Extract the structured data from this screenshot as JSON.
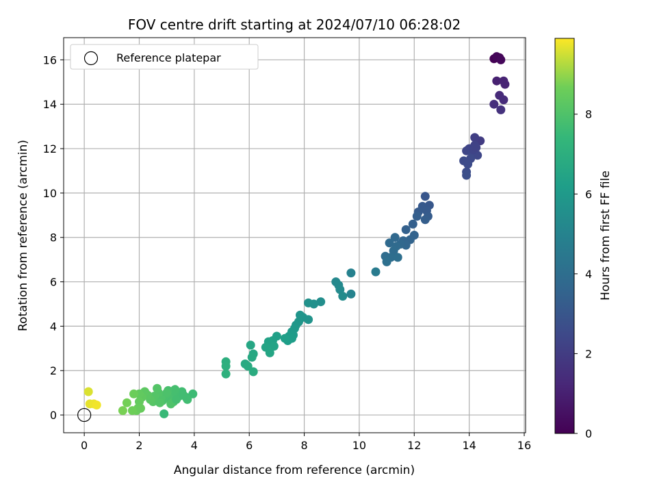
{
  "chart_data": {
    "type": "scatter",
    "title": "FOV centre drift starting at 2024/07/10 06:28:02",
    "xlabel": "Angular distance from reference (arcmin)",
    "ylabel": "Rotation from reference (arcmin)",
    "xlim": [
      -0.75,
      16.05
    ],
    "ylim": [
      -0.8,
      17.0
    ],
    "xticks": [
      "0",
      "2",
      "4",
      "6",
      "8",
      "10",
      "12",
      "14",
      "16"
    ],
    "yticks": [
      "0",
      "2",
      "4",
      "6",
      "8",
      "10",
      "12",
      "14",
      "16"
    ],
    "grid": true,
    "legend": {
      "position": "top-left",
      "entries": [
        "Reference platepar"
      ]
    },
    "colorbar": {
      "label": "Hours from first FF file",
      "colormap": "viridis",
      "range": [
        0,
        9.9
      ],
      "ticks": [
        "0",
        "2",
        "4",
        "6",
        "8"
      ]
    },
    "reference_point": {
      "x": 0,
      "y": 0
    },
    "points": [
      {
        "x": 14.9,
        "y": 16.05,
        "c": 0.0
      },
      {
        "x": 15.1,
        "y": 16.1,
        "c": 0.1
      },
      {
        "x": 15.0,
        "y": 16.15,
        "c": 0.15
      },
      {
        "x": 15.15,
        "y": 16.0,
        "c": 0.2
      },
      {
        "x": 15.0,
        "y": 15.05,
        "c": 1.0
      },
      {
        "x": 15.25,
        "y": 15.05,
        "c": 1.1
      },
      {
        "x": 15.3,
        "y": 14.9,
        "c": 1.15
      },
      {
        "x": 15.1,
        "y": 14.4,
        "c": 1.3
      },
      {
        "x": 15.25,
        "y": 14.2,
        "c": 1.4
      },
      {
        "x": 14.9,
        "y": 14.0,
        "c": 1.5
      },
      {
        "x": 15.15,
        "y": 13.75,
        "c": 1.6
      },
      {
        "x": 14.4,
        "y": 12.35,
        "c": 2.0
      },
      {
        "x": 14.2,
        "y": 12.5,
        "c": 2.1
      },
      {
        "x": 14.2,
        "y": 12.15,
        "c": 2.2
      },
      {
        "x": 14.0,
        "y": 12.0,
        "c": 2.3
      },
      {
        "x": 13.9,
        "y": 11.9,
        "c": 2.35
      },
      {
        "x": 14.3,
        "y": 11.7,
        "c": 2.4
      },
      {
        "x": 14.1,
        "y": 11.85,
        "c": 2.45
      },
      {
        "x": 14.05,
        "y": 11.55,
        "c": 2.5
      },
      {
        "x": 13.8,
        "y": 11.45,
        "c": 2.55
      },
      {
        "x": 13.95,
        "y": 11.3,
        "c": 2.6
      },
      {
        "x": 13.9,
        "y": 10.95,
        "c": 2.65
      },
      {
        "x": 13.9,
        "y": 10.8,
        "c": 2.7
      },
      {
        "x": 14.15,
        "y": 11.95,
        "c": 2.3
      },
      {
        "x": 14.25,
        "y": 12.05,
        "c": 2.25
      },
      {
        "x": 12.4,
        "y": 9.85,
        "c": 3.0
      },
      {
        "x": 12.55,
        "y": 9.45,
        "c": 3.05
      },
      {
        "x": 12.3,
        "y": 9.4,
        "c": 3.1
      },
      {
        "x": 12.45,
        "y": 9.2,
        "c": 3.15
      },
      {
        "x": 12.15,
        "y": 9.15,
        "c": 3.2
      },
      {
        "x": 12.5,
        "y": 8.95,
        "c": 3.25
      },
      {
        "x": 12.4,
        "y": 8.8,
        "c": 3.3
      },
      {
        "x": 12.1,
        "y": 8.95,
        "c": 3.35
      },
      {
        "x": 11.95,
        "y": 8.6,
        "c": 3.4
      },
      {
        "x": 11.7,
        "y": 8.35,
        "c": 3.45
      },
      {
        "x": 12.0,
        "y": 8.1,
        "c": 3.5
      },
      {
        "x": 11.85,
        "y": 7.9,
        "c": 3.55
      },
      {
        "x": 11.6,
        "y": 7.85,
        "c": 3.6
      },
      {
        "x": 11.7,
        "y": 7.65,
        "c": 3.65
      },
      {
        "x": 11.5,
        "y": 7.7,
        "c": 3.7
      },
      {
        "x": 11.3,
        "y": 8.0,
        "c": 3.75
      },
      {
        "x": 11.1,
        "y": 7.75,
        "c": 3.8
      },
      {
        "x": 11.35,
        "y": 7.6,
        "c": 3.85
      },
      {
        "x": 11.25,
        "y": 7.4,
        "c": 3.9
      },
      {
        "x": 10.95,
        "y": 7.15,
        "c": 3.95
      },
      {
        "x": 11.15,
        "y": 7.1,
        "c": 4.0
      },
      {
        "x": 11.4,
        "y": 7.1,
        "c": 4.05
      },
      {
        "x": 11.0,
        "y": 6.9,
        "c": 4.1
      },
      {
        "x": 10.6,
        "y": 6.45,
        "c": 4.6
      },
      {
        "x": 9.7,
        "y": 6.4,
        "c": 4.9
      },
      {
        "x": 9.7,
        "y": 5.45,
        "c": 5.0
      },
      {
        "x": 9.15,
        "y": 6.0,
        "c": 5.2
      },
      {
        "x": 9.25,
        "y": 5.85,
        "c": 5.25
      },
      {
        "x": 9.3,
        "y": 5.65,
        "c": 5.3
      },
      {
        "x": 9.4,
        "y": 5.35,
        "c": 5.35
      },
      {
        "x": 8.6,
        "y": 5.1,
        "c": 5.5
      },
      {
        "x": 8.35,
        "y": 5.0,
        "c": 5.55
      },
      {
        "x": 8.15,
        "y": 5.05,
        "c": 5.6
      },
      {
        "x": 8.15,
        "y": 4.3,
        "c": 5.7
      },
      {
        "x": 7.95,
        "y": 4.4,
        "c": 5.75
      },
      {
        "x": 7.85,
        "y": 4.5,
        "c": 5.8
      },
      {
        "x": 7.8,
        "y": 4.2,
        "c": 5.85
      },
      {
        "x": 7.7,
        "y": 4.05,
        "c": 5.9
      },
      {
        "x": 7.65,
        "y": 3.9,
        "c": 5.95
      },
      {
        "x": 7.55,
        "y": 3.75,
        "c": 6.0
      },
      {
        "x": 7.6,
        "y": 3.6,
        "c": 6.05
      },
      {
        "x": 7.45,
        "y": 3.55,
        "c": 6.1
      },
      {
        "x": 7.55,
        "y": 3.45,
        "c": 6.15
      },
      {
        "x": 7.4,
        "y": 3.35,
        "c": 6.2
      },
      {
        "x": 7.3,
        "y": 3.45,
        "c": 6.25
      },
      {
        "x": 7.0,
        "y": 3.55,
        "c": 6.3
      },
      {
        "x": 6.85,
        "y": 3.35,
        "c": 6.35
      },
      {
        "x": 6.7,
        "y": 3.3,
        "c": 6.4
      },
      {
        "x": 6.9,
        "y": 3.1,
        "c": 6.45
      },
      {
        "x": 6.6,
        "y": 3.05,
        "c": 6.5
      },
      {
        "x": 6.75,
        "y": 2.8,
        "c": 6.55
      },
      {
        "x": 6.05,
        "y": 3.15,
        "c": 6.6
      },
      {
        "x": 6.15,
        "y": 2.75,
        "c": 6.65
      },
      {
        "x": 6.1,
        "y": 2.6,
        "c": 6.7
      },
      {
        "x": 5.85,
        "y": 2.3,
        "c": 6.75
      },
      {
        "x": 5.95,
        "y": 2.2,
        "c": 6.8
      },
      {
        "x": 6.15,
        "y": 1.95,
        "c": 6.85
      },
      {
        "x": 5.15,
        "y": 2.4,
        "c": 7.0
      },
      {
        "x": 5.15,
        "y": 2.2,
        "c": 7.05
      },
      {
        "x": 5.15,
        "y": 1.85,
        "c": 7.1
      },
      {
        "x": 3.95,
        "y": 0.95,
        "c": 7.6
      },
      {
        "x": 3.7,
        "y": 0.8,
        "c": 7.65
      },
      {
        "x": 3.55,
        "y": 1.05,
        "c": 7.7
      },
      {
        "x": 3.75,
        "y": 0.7,
        "c": 7.7
      },
      {
        "x": 3.45,
        "y": 0.85,
        "c": 7.75
      },
      {
        "x": 3.3,
        "y": 1.15,
        "c": 7.8
      },
      {
        "x": 3.2,
        "y": 0.95,
        "c": 7.8
      },
      {
        "x": 3.1,
        "y": 0.75,
        "c": 7.85
      },
      {
        "x": 3.05,
        "y": 1.1,
        "c": 7.85
      },
      {
        "x": 2.95,
        "y": 0.9,
        "c": 7.9
      },
      {
        "x": 2.85,
        "y": 0.65,
        "c": 7.9
      },
      {
        "x": 2.9,
        "y": 0.05,
        "c": 7.5
      },
      {
        "x": 3.25,
        "y": 0.6,
        "c": 7.95
      },
      {
        "x": 3.15,
        "y": 0.5,
        "c": 8.0
      },
      {
        "x": 2.8,
        "y": 0.8,
        "c": 8.0
      },
      {
        "x": 2.7,
        "y": 1.0,
        "c": 8.05
      },
      {
        "x": 2.65,
        "y": 1.2,
        "c": 8.1
      },
      {
        "x": 2.55,
        "y": 0.85,
        "c": 8.1
      },
      {
        "x": 2.5,
        "y": 0.6,
        "c": 8.15
      },
      {
        "x": 2.4,
        "y": 0.7,
        "c": 8.2
      },
      {
        "x": 2.3,
        "y": 0.9,
        "c": 8.25
      },
      {
        "x": 2.2,
        "y": 1.05,
        "c": 8.3
      },
      {
        "x": 2.1,
        "y": 0.8,
        "c": 8.35
      },
      {
        "x": 2.0,
        "y": 0.95,
        "c": 8.4
      },
      {
        "x": 2.0,
        "y": 0.6,
        "c": 8.45
      },
      {
        "x": 1.95,
        "y": 0.3,
        "c": 8.5
      },
      {
        "x": 1.9,
        "y": 0.2,
        "c": 8.55
      },
      {
        "x": 1.8,
        "y": 0.95,
        "c": 8.6
      },
      {
        "x": 1.75,
        "y": 0.2,
        "c": 8.65
      },
      {
        "x": 1.55,
        "y": 0.55,
        "c": 8.7
      },
      {
        "x": 1.4,
        "y": 0.2,
        "c": 8.75
      },
      {
        "x": 2.05,
        "y": 0.3,
        "c": 8.5
      },
      {
        "x": 3.35,
        "y": 0.7,
        "c": 7.75
      },
      {
        "x": 3.6,
        "y": 0.9,
        "c": 7.7
      },
      {
        "x": 2.75,
        "y": 0.55,
        "c": 8.05
      },
      {
        "x": 3.0,
        "y": 1.0,
        "c": 7.95
      },
      {
        "x": 0.15,
        "y": 1.05,
        "c": 9.6
      },
      {
        "x": 0.2,
        "y": 0.5,
        "c": 9.7
      },
      {
        "x": 0.35,
        "y": 0.5,
        "c": 9.75
      },
      {
        "x": 0.45,
        "y": 0.45,
        "c": 9.8
      }
    ]
  }
}
